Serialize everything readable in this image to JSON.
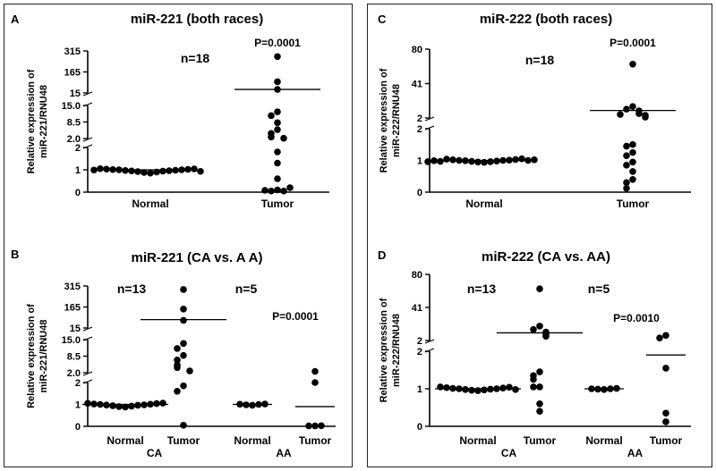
{
  "chart_data": [
    {
      "type": "scatter",
      "letter": "A",
      "title": "miR-221 (both races)",
      "ylabel": [
        "Relative expression of",
        "miR-221/RNU48"
      ],
      "axis_segments": [
        {
          "min": 0,
          "max": 2,
          "ticks": [
            "0",
            "1",
            "2"
          ],
          "tick_values": [
            0,
            1,
            2
          ]
        },
        {
          "min": 2,
          "max": 15,
          "ticks": [
            "2.0",
            "8.5",
            "15.0"
          ],
          "tick_values": [
            2,
            8.5,
            15
          ]
        },
        {
          "min": 15,
          "max": 315,
          "ticks": [
            "15",
            "165",
            "315"
          ],
          "tick_values": [
            15,
            165,
            315
          ]
        }
      ],
      "annotations": [
        {
          "text": "n=18",
          "style": "nlab"
        },
        {
          "text": "P=0.0001",
          "style": "anno"
        }
      ],
      "groups": [
        {
          "label": "Normal",
          "median": 1.0,
          "values": [
            0.85,
            0.88,
            0.9,
            0.92,
            0.94,
            0.95,
            0.96,
            0.97,
            0.98,
            1.0,
            1.0,
            1.01,
            1.02,
            1.03,
            1.04,
            1.05,
            0.93,
            0.99
          ]
        },
        {
          "label": "Tumor",
          "median": 40,
          "values": [
            275,
            95,
            40,
            12.5,
            11.0,
            8.2,
            5.5,
            4.0,
            2.6,
            2.1,
            1.8,
            1.3,
            0.6,
            0.1,
            0.05,
            0.05,
            0.08,
            0.2
          ]
        }
      ],
      "sublabels": []
    },
    {
      "type": "scatter",
      "letter": "B",
      "title": "miR-221 (CA vs. A A)",
      "ylabel": [
        "Relative expression of",
        "miR-221/RNU48"
      ],
      "axis_segments": [
        {
          "min": 0,
          "max": 2,
          "ticks": [
            "0",
            "1",
            "2"
          ],
          "tick_values": [
            0,
            1,
            2
          ]
        },
        {
          "min": 2,
          "max": 15,
          "ticks": [
            "2.0",
            "8.5",
            "15.0"
          ],
          "tick_values": [
            2,
            8.5,
            15
          ]
        },
        {
          "min": 15,
          "max": 315,
          "ticks": [
            "15",
            "165",
            "315"
          ],
          "tick_values": [
            15,
            165,
            315
          ]
        }
      ],
      "annotations": [
        {
          "text": "n=13",
          "style": "nlab"
        },
        {
          "text": "n=5",
          "style": "nlab"
        },
        {
          "text": "P=0.0001",
          "style": "anno"
        }
      ],
      "groups": [
        {
          "label": "Normal",
          "median": 1.0,
          "values": [
            0.88,
            0.9,
            0.92,
            0.94,
            0.96,
            0.97,
            0.98,
            1.0,
            1.01,
            1.02,
            1.04,
            1.05,
            1.06
          ]
        },
        {
          "label": "Tumor",
          "median": 75,
          "values": [
            290,
            150,
            70,
            13.5,
            11.5,
            8.8,
            7.0,
            5.0,
            4.0,
            2.7,
            1.85,
            1.6,
            0.05
          ]
        },
        {
          "label": "Normal",
          "median": 1.0,
          "values": [
            0.96,
            0.98,
            1.0,
            1.01,
            1.02
          ]
        },
        {
          "label": "Tumor",
          "median": 0.9,
          "values": [
            2.5,
            2.0,
            0.02,
            0.02,
            0.03
          ]
        }
      ],
      "sublabels": [
        "CA",
        "AA"
      ]
    },
    {
      "type": "scatter",
      "letter": "C",
      "title": "miR-222 (both races)",
      "ylabel": [
        "Relative expression of",
        "miR-222/RNU48"
      ],
      "axis_segments": [
        {
          "min": 0,
          "max": 2,
          "ticks": [
            "0",
            "1",
            "2"
          ],
          "tick_values": [
            0,
            1,
            2
          ]
        },
        {
          "min": 2,
          "max": 80,
          "ticks": [
            "2",
            "41",
            "80"
          ],
          "tick_values": [
            2,
            41,
            80
          ]
        }
      ],
      "annotations": [
        {
          "text": "n=18",
          "style": "nlab"
        },
        {
          "text": "P=0.0001",
          "style": "anno"
        }
      ],
      "groups": [
        {
          "label": "Normal",
          "median": 1.0,
          "values": [
            0.94,
            0.95,
            0.96,
            0.97,
            0.98,
            0.99,
            1.0,
            1.0,
            1.01,
            1.02,
            1.03,
            1.04,
            1.05,
            0.97,
            1.0,
            0.99,
            1.02,
            0.96
          ]
        },
        {
          "label": "Tumor",
          "median": 10.5,
          "values": [
            63,
            15,
            12,
            10,
            7,
            6,
            5,
            3,
            1.5,
            1.45,
            1.25,
            1.15,
            0.95,
            0.85,
            0.65,
            0.4,
            0.3,
            0.12
          ]
        }
      ],
      "sublabels": []
    },
    {
      "type": "scatter",
      "letter": "D",
      "title": "miR-222 (CA vs.  AA)",
      "ylabel": [
        "Relative expression of",
        "miR-222/RNU48"
      ],
      "axis_segments": [
        {
          "min": 0,
          "max": 2,
          "ticks": [
            "0",
            "1",
            "2"
          ],
          "tick_values": [
            0,
            1,
            2
          ]
        },
        {
          "min": 2,
          "max": 80,
          "ticks": [
            "2",
            "41",
            "80"
          ],
          "tick_values": [
            2,
            41,
            80
          ]
        }
      ],
      "annotations": [
        {
          "text": "n=13",
          "style": "nlab"
        },
        {
          "text": "n=5",
          "style": "nlab"
        },
        {
          "text": "P=0.0010",
          "style": "anno"
        }
      ],
      "groups": [
        {
          "label": "Normal",
          "median": 1.0,
          "values": [
            0.95,
            0.96,
            0.97,
            0.98,
            0.99,
            1.0,
            1.0,
            1.01,
            1.02,
            1.03,
            1.04,
            1.05,
            0.98
          ]
        },
        {
          "label": "Tumor",
          "median": 11,
          "values": [
            63,
            19,
            15,
            12,
            9,
            7,
            1.45,
            1.35,
            1.25,
            1.05,
            1.05,
            0.6,
            0.4
          ]
        },
        {
          "label": "Normal",
          "median": 1.0,
          "values": [
            0.98,
            0.99,
            1.0,
            1.0,
            1.01
          ]
        },
        {
          "label": "Tumor",
          "median": 1.9,
          "values": [
            8,
            5,
            1.55,
            0.35,
            0.12
          ]
        }
      ],
      "sublabels": [
        "CA",
        "AA"
      ]
    }
  ]
}
